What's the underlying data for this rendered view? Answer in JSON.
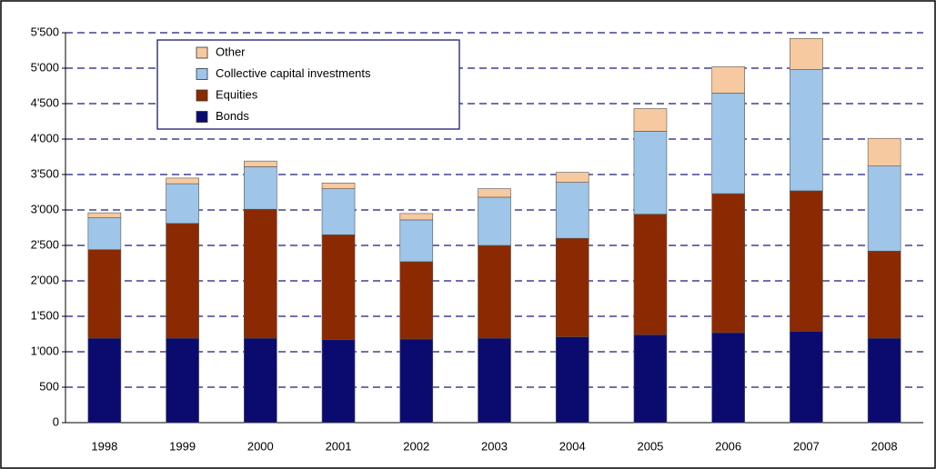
{
  "chart_data": {
    "type": "stacked_bar",
    "categories": [
      "1998",
      "1999",
      "2000",
      "2001",
      "2002",
      "2003",
      "2004",
      "2005",
      "2006",
      "2007",
      "2008"
    ],
    "series": [
      {
        "name": "Bonds",
        "color": "#0b0b6f",
        "values": [
          1190,
          1190,
          1190,
          1170,
          1180,
          1190,
          1210,
          1240,
          1270,
          1290,
          1190
        ]
      },
      {
        "name": "Equities",
        "color": "#8b2a02",
        "values": [
          1250,
          1620,
          1820,
          1480,
          1090,
          1310,
          1390,
          1700,
          1960,
          1980,
          1230
        ]
      },
      {
        "name": "Collective capital investments",
        "color": "#9fc5e8",
        "values": [
          450,
          560,
          600,
          650,
          590,
          680,
          790,
          1170,
          1420,
          1710,
          1200
        ]
      },
      {
        "name": "Other",
        "color": "#f6c9a0",
        "values": [
          70,
          80,
          80,
          80,
          90,
          120,
          140,
          320,
          370,
          440,
          390
        ]
      }
    ],
    "ylim": [
      0,
      5500
    ],
    "yticks": [
      0,
      500,
      {
        "value": 1000,
        "label": "1'000"
      },
      {
        "value": 1500,
        "label": "1'500"
      },
      {
        "value": 2000,
        "label": "2'000"
      },
      {
        "value": 2500,
        "label": "2'500"
      },
      {
        "value": 3000,
        "label": "3'000"
      },
      {
        "value": 3500,
        "label": "3'500"
      },
      {
        "value": 4000,
        "label": "4'000"
      },
      {
        "value": 4500,
        "label": "4'500"
      },
      {
        "value": 5000,
        "label": "5'000"
      },
      {
        "value": 5500,
        "label": "5'500"
      }
    ],
    "grid": true
  }
}
